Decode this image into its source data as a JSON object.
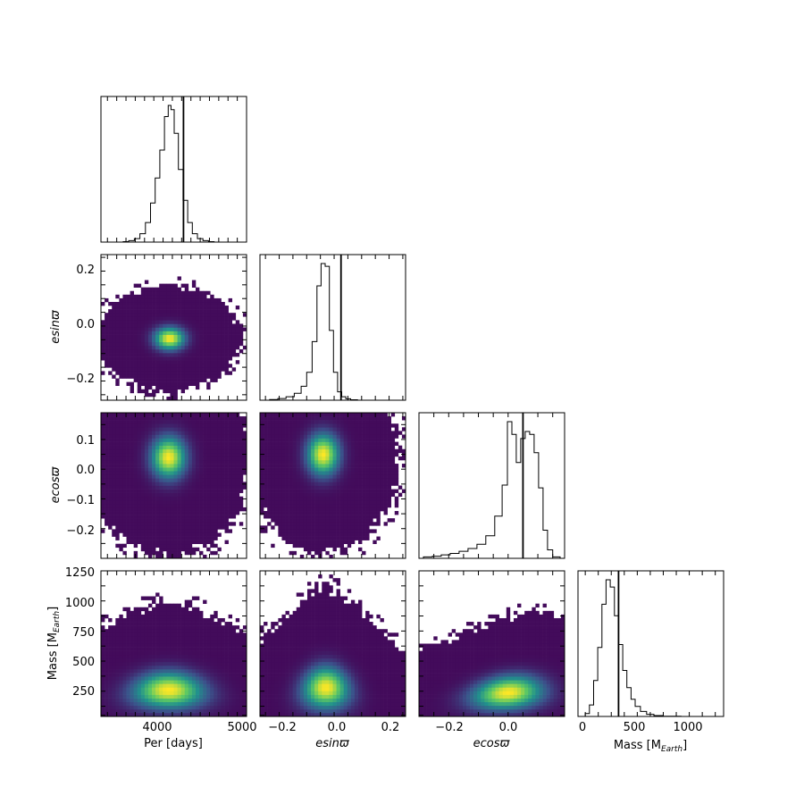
{
  "chart_data": {
    "type": "corner",
    "parameters": [
      {
        "key": "per",
        "label": "Per [days]",
        "range": [
          3430,
          5000
        ]
      },
      {
        "key": "esinw",
        "label": "esinϖ",
        "range": [
          -0.27,
          0.26
        ]
      },
      {
        "key": "ecosw",
        "label": "ecosϖ",
        "range": [
          -0.3,
          0.19
        ]
      },
      {
        "key": "mass",
        "label": "Mass [M",
        "label_sub": "Earth",
        "label_tail": "]",
        "range": [
          40,
          1250
        ],
        "hist_range": [
          -70,
          1330
        ]
      }
    ],
    "truth_values": {
      "per": 4320,
      "esinw": 0.025,
      "ecosw": 0.05,
      "mass": 320
    },
    "ticks": {
      "per_x": [
        "4000",
        "5000"
      ],
      "esinw": [
        "−0.2",
        "0.0",
        "0.2"
      ],
      "ecosw_y": [
        "−0.2",
        "−0.1",
        "0.0",
        "0.1"
      ],
      "ecosw_x": [
        "−0.2",
        "0.0"
      ],
      "mass_y": [
        "250",
        "500",
        "750",
        "1000",
        "1250"
      ],
      "mass_x": [
        "0",
        "500",
        "1000"
      ]
    },
    "marginals": {
      "per": {
        "centers": [
          3700,
          3760,
          3820,
          3880,
          3940,
          3990,
          4040,
          4090,
          4140,
          4170,
          4200,
          4240,
          4290,
          4340,
          4390,
          4440,
          4500,
          4560,
          4620
        ],
        "density": [
          0.003,
          0.01,
          0.025,
          0.06,
          0.14,
          0.28,
          0.46,
          0.66,
          0.9,
          0.98,
          0.95,
          0.78,
          0.52,
          0.3,
          0.14,
          0.06,
          0.025,
          0.01,
          0.003
        ]
      },
      "esinw": {
        "centers": [
          -0.22,
          -0.19,
          -0.16,
          -0.13,
          -0.11,
          -0.09,
          -0.07,
          -0.055,
          -0.04,
          -0.025,
          -0.01,
          0.005,
          0.02,
          0.035,
          0.05,
          0.07
        ],
        "density": [
          0.005,
          0.012,
          0.025,
          0.05,
          0.1,
          0.2,
          0.42,
          0.82,
          0.98,
          0.96,
          0.5,
          0.2,
          0.06,
          0.025,
          0.01,
          0.003
        ]
      },
      "ecosw": {
        "centers": [
          -0.27,
          -0.24,
          -0.21,
          -0.18,
          -0.15,
          -0.12,
          -0.09,
          -0.06,
          -0.03,
          -0.01,
          0.005,
          0.02,
          0.035,
          0.05,
          0.065,
          0.08,
          0.095,
          0.11,
          0.125,
          0.14,
          0.16
        ],
        "density": [
          0.01,
          0.015,
          0.025,
          0.035,
          0.05,
          0.07,
          0.1,
          0.16,
          0.3,
          0.52,
          0.97,
          0.88,
          0.68,
          0.85,
          0.9,
          0.88,
          0.75,
          0.5,
          0.2,
          0.06,
          0.01
        ]
      },
      "mass": {
        "centers": [
          20,
          60,
          100,
          140,
          180,
          220,
          260,
          300,
          340,
          380,
          420,
          460,
          500,
          560,
          620,
          700,
          800,
          900
        ],
        "density": [
          0.02,
          0.08,
          0.25,
          0.48,
          0.78,
          0.95,
          0.9,
          0.7,
          0.5,
          0.32,
          0.2,
          0.12,
          0.07,
          0.035,
          0.015,
          0.006,
          0.002,
          0.001
        ]
      }
    },
    "joint_density_peaks": [
      {
        "x": "per",
        "y": "esinw",
        "peak": [
          4170,
          -0.045
        ],
        "spread": [
          140,
          0.035
        ]
      },
      {
        "x": "per",
        "y": "ecosw",
        "peak": [
          4160,
          0.04
        ],
        "spread": [
          160,
          0.06
        ]
      },
      {
        "x": "esinw",
        "y": "ecosw",
        "peak": [
          -0.04,
          0.05
        ],
        "spread": [
          0.05,
          0.06
        ]
      },
      {
        "x": "per",
        "y": "mass",
        "peak": [
          4160,
          260
        ],
        "spread": [
          200,
          130
        ]
      },
      {
        "x": "esinw",
        "y": "mass",
        "peak": [
          -0.03,
          280
        ],
        "spread": [
          0.045,
          150
        ]
      },
      {
        "x": "ecosw",
        "y": "mass",
        "peak": [
          0.0,
          240
        ],
        "spread": [
          0.06,
          120
        ]
      }
    ],
    "colormap": [
      "#440154",
      "#3b528b",
      "#21918c",
      "#5ec962",
      "#fde725"
    ],
    "grid": false,
    "legend": "none"
  }
}
